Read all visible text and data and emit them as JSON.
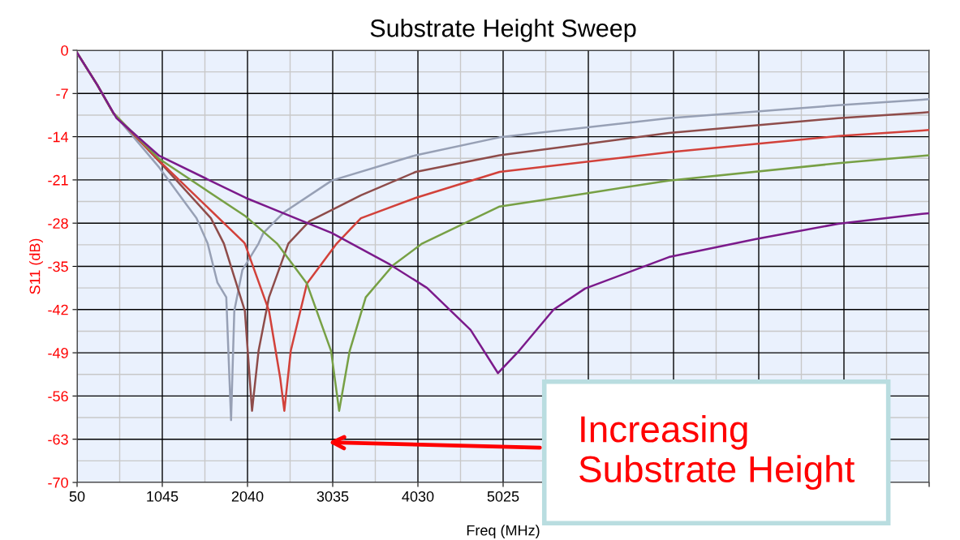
{
  "chart_data": {
    "type": "line",
    "title": "Substrate Height Sweep",
    "xlabel": "Freq (MHz)",
    "ylabel": "S11 (dB)",
    "xlim": [
      50,
      10000
    ],
    "xticks": [
      50,
      1045,
      2040,
      3035,
      4030,
      5025,
      {
        "value": 6020,
        "label": null
      },
      {
        "value": 7015,
        "label": null
      },
      {
        "value": 8010,
        "label": null
      },
      {
        "value": 9005,
        "label": null
      },
      {
        "value": 10000,
        "label": null
      }
    ],
    "ylim": [
      -70,
      0
    ],
    "yticks": [
      0,
      -7,
      -14,
      -21,
      -28,
      -35,
      -42,
      -49,
      -56,
      -63,
      -70
    ],
    "grid": true,
    "line_style": "solid",
    "marker": "none",
    "annotations": [
      "Increasing\nSubstrate Height"
    ],
    "series": [
      {
        "color": "#97a0b5",
        "x": [
          50,
          285,
          474,
          1010,
          1444,
          1575,
          1688,
          1792,
          1848,
          1886,
          1980,
          2169,
          2225,
          2460,
          3025,
          4005,
          4984,
          6961,
          8939,
          9918,
          10000
        ],
        "values": [
          -0.4,
          -5.6,
          -10.2,
          -19,
          -27.2,
          -31.3,
          -37.6,
          -40,
          -59.9,
          -42.2,
          -35.6,
          -31.3,
          -29.6,
          -26.3,
          -21.1,
          -17,
          -14.1,
          -11,
          -8.9,
          -8,
          -7.9
        ]
      },
      {
        "color": "#8e4c4a",
        "x": [
          50,
          285,
          474,
          1029,
          1613,
          1764,
          2009,
          2093,
          2169,
          2291,
          2517,
          2762,
          3364,
          4005,
          4984,
          6961,
          8939,
          9918,
          10000
        ],
        "values": [
          -0.4,
          -5.6,
          -10.2,
          -18.3,
          -27.2,
          -31.3,
          -42.2,
          -58.4,
          -48.7,
          -40,
          -31.3,
          -27.7,
          -23.5,
          -19.7,
          -17,
          -13.4,
          -11,
          -10.1,
          -10
        ]
      },
      {
        "color": "#d2413a",
        "x": [
          50,
          285,
          474,
          1010,
          1990,
          2009,
          2291,
          2423,
          2470,
          2545,
          2734,
          3082,
          3364,
          4005,
          4984,
          6961,
          8939,
          9918,
          10000
        ],
        "values": [
          -0.4,
          -5.6,
          -10.2,
          -17.9,
          -31,
          -31.3,
          -42.2,
          -53.2,
          -58.4,
          -48.7,
          -37.8,
          -31.3,
          -27.2,
          -23.9,
          -19.7,
          -16.5,
          -13.9,
          -13,
          -12.9
        ]
      },
      {
        "color": "#77a045",
        "x": [
          50,
          285,
          474,
          1010,
          2018,
          2385,
          2734,
          3016,
          3110,
          3233,
          3421,
          3741,
          4080,
          4984,
          5982,
          6961,
          8939,
          9918,
          10000
        ],
        "values": [
          -0.4,
          -5.6,
          -10.2,
          -17.6,
          -26.9,
          -31.3,
          -37.8,
          -48.7,
          -58.4,
          -48.7,
          -40,
          -34.8,
          -31.3,
          -25.3,
          -23.2,
          -21.1,
          -18.3,
          -17.1,
          -17
        ]
      },
      {
        "color": "#7b1a8b",
        "x": [
          50,
          285,
          511,
          1010,
          2018,
          3025,
          3703,
          4137,
          4645,
          4965,
          5210,
          5615,
          5982,
          6961,
          7969,
          8939,
          9918,
          10000
        ],
        "values": [
          -0.4,
          -5.6,
          -11,
          -17.1,
          -23.9,
          -29.6,
          -34.7,
          -38.5,
          -45.3,
          -52.3,
          -48.7,
          -42,
          -38.6,
          -33.5,
          -30.6,
          -28.1,
          -26.5,
          -26.4
        ]
      }
    ]
  }
}
